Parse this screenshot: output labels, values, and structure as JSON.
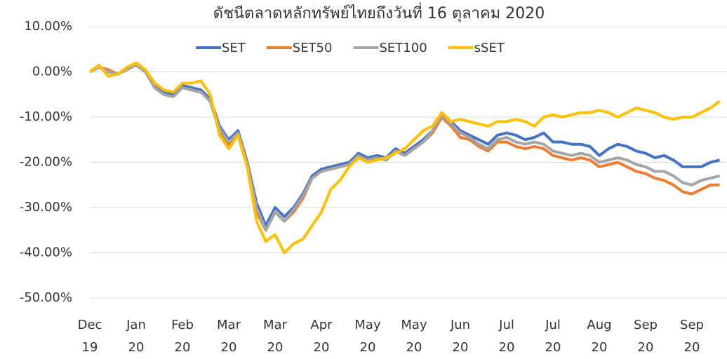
{
  "chart_data": {
    "type": "line",
    "title": "ดัชนีตลาดหลักทรัพย์ไทยถึงวันที่ 16 ตุลาคม 2020",
    "categories": [
      "Dec 19",
      null,
      null,
      null,
      null,
      "Jan 20",
      null,
      null,
      null,
      null,
      "Feb 20",
      null,
      null,
      null,
      null,
      "Mar 20",
      null,
      null,
      null,
      null,
      "Mar 20",
      null,
      null,
      null,
      null,
      "Apr 20",
      null,
      null,
      null,
      null,
      "May 20",
      null,
      null,
      null,
      null,
      "May 20",
      null,
      null,
      null,
      null,
      "Jun 20",
      null,
      null,
      null,
      null,
      "Jul 20",
      null,
      null,
      null,
      null,
      "Jul 20",
      null,
      null,
      null,
      null,
      "Aug 20",
      null,
      null,
      null,
      null,
      "Sep 20",
      null,
      null,
      null,
      null,
      "Sep 20",
      null,
      null,
      null
    ],
    "series": [
      {
        "name": "SET",
        "color": "#4472c4",
        "values": [
          0,
          1,
          0,
          -0.5,
          0.5,
          1.5,
          0,
          -3,
          -4.5,
          -5,
          -3,
          -3.5,
          -4,
          -6,
          -12,
          -15,
          -13,
          -20,
          -29,
          -34,
          -30,
          -32,
          -30,
          -27,
          -23,
          -21.5,
          -21,
          -20.5,
          -20,
          -18,
          -19,
          -18.5,
          -19,
          -17,
          -18,
          -16.5,
          -15,
          -13,
          -9.5,
          -11,
          -13,
          -14,
          -15,
          -16,
          -14,
          -13.5,
          -14,
          -15,
          -14.5,
          -13.5,
          -15.5,
          -15.5,
          -16,
          -16,
          -16.5,
          -18.5,
          -17,
          -16,
          -16.5,
          -17.5,
          -18,
          -19,
          -18.5,
          -19.5,
          -21,
          -21,
          -21,
          -20,
          -19.5
        ]
      },
      {
        "name": "SET50",
        "color": "#ed7d31",
        "values": [
          0,
          1,
          0.5,
          -0.5,
          0.5,
          1.5,
          0,
          -3.5,
          -5,
          -5.5,
          -3.5,
          -4,
          -4.5,
          -6.5,
          -13,
          -16,
          -14,
          -21,
          -31,
          -35,
          -31,
          -33,
          -31,
          -28,
          -23.5,
          -22,
          -21.5,
          -21,
          -20.5,
          -18.5,
          -19.5,
          -19,
          -19.5,
          -17.5,
          -18.5,
          -17,
          -15.5,
          -13.5,
          -10,
          -12,
          -14.5,
          -15,
          -16.5,
          -17.5,
          -15.5,
          -15.5,
          -16.5,
          -17,
          -16.5,
          -17,
          -18.5,
          -19,
          -19.5,
          -19,
          -19.5,
          -21,
          -20.5,
          -20,
          -21,
          -22,
          -22.5,
          -23.5,
          -24,
          -25,
          -26.5,
          -27,
          -26,
          -25,
          -25
        ]
      },
      {
        "name": "SET100",
        "color": "#a5a5a5",
        "values": [
          0,
          1,
          0,
          -0.5,
          0.5,
          1.5,
          0,
          -3.5,
          -5,
          -5.5,
          -3.5,
          -4,
          -4.5,
          -6.5,
          -12.5,
          -15.5,
          -13.5,
          -20.5,
          -30,
          -35,
          -31,
          -33,
          -30.5,
          -27.5,
          -23.5,
          -22,
          -21.5,
          -21,
          -20.5,
          -18.5,
          -19.5,
          -19,
          -19.5,
          -17.5,
          -18.5,
          -17,
          -15.5,
          -13,
          -9.5,
          -11.5,
          -13.5,
          -14.5,
          -16,
          -17,
          -15,
          -14.5,
          -15.5,
          -16,
          -15.5,
          -16,
          -17.5,
          -18,
          -18.5,
          -18,
          -18.5,
          -20,
          -19.5,
          -19,
          -19.5,
          -20.5,
          -21,
          -22,
          -22,
          -23,
          -24.5,
          -25,
          -24,
          -23.5,
          -23
        ]
      },
      {
        "name": "sSET",
        "color": "#ffc000",
        "values": [
          0,
          1.5,
          -1,
          -0.5,
          1,
          2,
          0.5,
          -2.5,
          -4,
          -4.5,
          -2.5,
          -2.5,
          -2,
          -5,
          -14,
          -17,
          -14,
          -21,
          -33,
          -37.5,
          -36,
          -40,
          -38,
          -37,
          -34,
          -31,
          -26,
          -24,
          -21,
          -19,
          -20,
          -19.5,
          -19,
          -18,
          -17,
          -15,
          -13,
          -12,
          -9,
          -11,
          -10.5,
          -11,
          -11.5,
          -12,
          -11,
          -11,
          -10.5,
          -11,
          -12,
          -10,
          -9.5,
          -10,
          -9.5,
          -9,
          -9,
          -8.5,
          -9,
          -10,
          -9,
          -8,
          -8.5,
          -9,
          -10,
          -10.5,
          -10,
          -10,
          -9,
          -8,
          -6.5
        ]
      }
    ],
    "ylim": [
      -50,
      10
    ],
    "yticks": [
      {
        "value": -50,
        "label": "-50.00%"
      },
      {
        "value": -40,
        "label": "-40.00%"
      },
      {
        "value": -30,
        "label": "-30.00%"
      },
      {
        "value": -20,
        "label": "-20.00%"
      },
      {
        "value": -10,
        "label": "-10.00%"
      },
      {
        "value": 0,
        "label": "0.00%"
      },
      {
        "value": 10,
        "label": "10.00%"
      }
    ],
    "grid": true,
    "legend": "top"
  }
}
